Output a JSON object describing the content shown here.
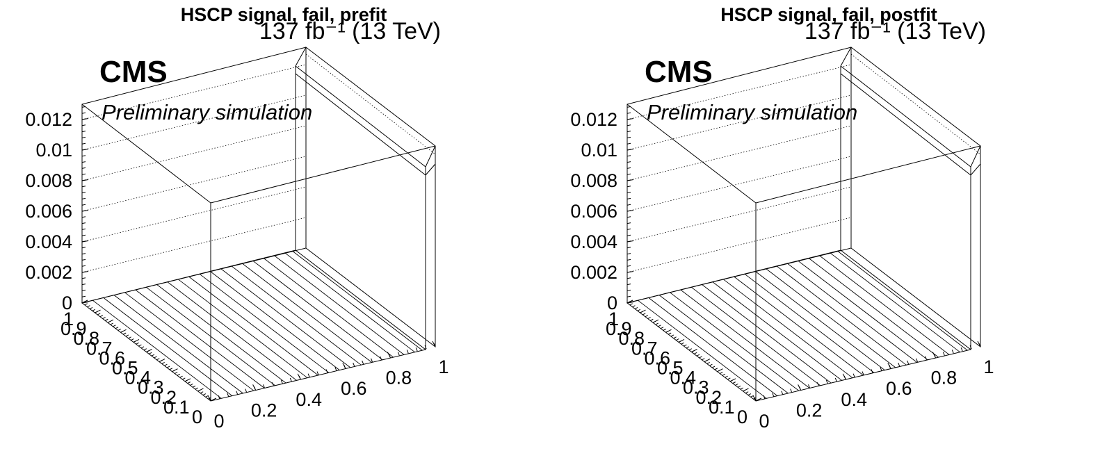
{
  "chart_data": [
    {
      "type": "lego",
      "title": "HSCP signal, fail, prefit",
      "lumi_label": "137 fb⁻¹ (13 TeV)",
      "cms_label": "CMS",
      "extra_label": "Preliminary simulation",
      "zlabel": "",
      "z_ticks": [
        "0",
        "0.002",
        "0.004",
        "0.006",
        "0.008",
        "0.01",
        "0.012"
      ],
      "z_tick_values": [
        0,
        0.002,
        0.004,
        0.006,
        0.008,
        0.01,
        0.012
      ],
      "zlim": [
        0,
        0.013
      ],
      "x_ticks": [
        "0",
        "0.2",
        "0.4",
        "0.6",
        "0.8",
        "1"
      ],
      "xlim": [
        0,
        1
      ],
      "y_ticks": [
        "0",
        "0.1",
        "0.2",
        "0.3",
        "0.4",
        "0.5",
        "0.6",
        "0.7",
        "0.8",
        "0.9",
        "1"
      ],
      "ylim": [
        0,
        1
      ],
      "grid": true,
      "bins": 20
    },
    {
      "type": "lego",
      "title": "HSCP signal, fail, postfit",
      "lumi_label": "137 fb⁻¹ (13 TeV)",
      "cms_label": "CMS",
      "extra_label": "Preliminary simulation",
      "zlabel": "",
      "z_ticks": [
        "0",
        "0.002",
        "0.004",
        "0.006",
        "0.008",
        "0.01",
        "0.012"
      ],
      "z_tick_values": [
        0,
        0.002,
        0.004,
        0.006,
        0.008,
        0.01,
        0.012
      ],
      "zlim": [
        0,
        0.013
      ],
      "x_ticks": [
        "0",
        "0.2",
        "0.4",
        "0.6",
        "0.8",
        "1"
      ],
      "xlim": [
        0,
        1
      ],
      "y_ticks": [
        "0",
        "0.1",
        "0.2",
        "0.3",
        "0.4",
        "0.5",
        "0.6",
        "0.7",
        "0.8",
        "0.9",
        "1"
      ],
      "ylim": [
        0,
        1
      ],
      "grid": true,
      "bins": 20
    }
  ]
}
